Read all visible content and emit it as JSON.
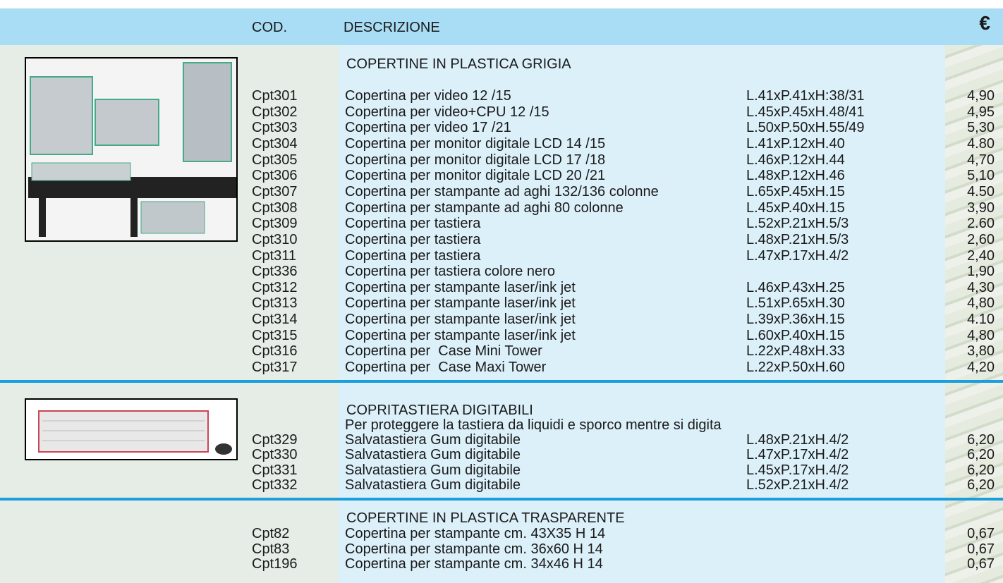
{
  "header": {
    "cod": "COD.",
    "descrizione": "DESCRIZIONE",
    "currency": "€"
  },
  "sections": [
    {
      "title": "COPERTINE IN PLASTICA GRIGIA",
      "rows": [
        {
          "code": "Cpt301",
          "description": "Copertina per video 12 /15",
          "size": "L.41xP.41xH:38/31",
          "price": "4,90"
        },
        {
          "code": "Cpt302",
          "description": "Copertina per video+CPU 12 /15",
          "size": "L.45xP.45xH.48/41",
          "price": "4,95"
        },
        {
          "code": "Cpt303",
          "description": "Copertina per video 17 /21",
          "size": "L.50xP.50xH.55/49",
          "price": "5,30"
        },
        {
          "code": "Cpt304",
          "description": "Copertina per monitor digitale LCD 14 /15",
          "size": "L.41xP.12xH.40",
          "price": "4.80"
        },
        {
          "code": "Cpt305",
          "description": "Copertina per monitor digitale LCD 17 /18",
          "size": "L.46xP.12xH.44",
          "price": "4,70"
        },
        {
          "code": "Cpt306",
          "description": "Copertina per monitor digitale LCD 20 /21",
          "size": "L.48xP.12xH.46",
          "price": "5,10"
        },
        {
          "code": "Cpt307",
          "description": "Copertina per stampante ad aghi 132/136 colonne",
          "size": "L.65xP.45xH.15",
          "price": "4.50"
        },
        {
          "code": "Cpt308",
          "description": "Copertina per stampante ad aghi 80 colonne",
          "size": "L.45xP.40xH.15",
          "price": "3,90"
        },
        {
          "code": "Cpt309",
          "description": "Copertina per tastiera",
          "size": "L.52xP.21xH.5/3",
          "price": "2.60"
        },
        {
          "code": "Cpt310",
          "description": "Copertina per tastiera",
          "size": "L.48xP.21xH.5/3",
          "price": "2,60"
        },
        {
          "code": "Cpt311",
          "description": "Copertina per tastiera",
          "size": "L.47xP.17xH.4/2",
          "price": "2,40"
        },
        {
          "code": "Cpt336",
          "description": "Copertina per tastiera colore nero",
          "price": "1,90"
        },
        {
          "code": "Cpt312",
          "description": "Copertina per stampante laser/ink jet",
          "size": "L.46xP.43xH.25",
          "price": "4,30"
        },
        {
          "code": "Cpt313",
          "description": "Copertina per stampante laser/ink jet",
          "size": "L.51xP.65xH.30",
          "price": "4,80"
        },
        {
          "code": "Cpt314",
          "description": "Copertina per stampante laser/ink jet",
          "size": "L.39xP.36xH.15",
          "price": "4.10"
        },
        {
          "code": "Cpt315",
          "description": "Copertina per stampante laser/ink jet",
          "size": "L.60xP.40xH.15",
          "price": "4,80"
        },
        {
          "code": "Cpt316",
          "description": "Copertina per  Case Mini Tower",
          "size": "L.22xP.48xH.33",
          "price": "3,80"
        },
        {
          "code": "Cpt317",
          "description": "Copertina per  Case Maxi Tower",
          "size": "L.22xP.50xH.60",
          "price": "4,20"
        }
      ]
    },
    {
      "title": "COPRITASTIERA DIGITABILI",
      "subtitle": "Per proteggere la tastiera da liquidi e sporco mentre si digita",
      "rows": [
        {
          "code": "Cpt329",
          "description": "Salvatastiera Gum digitabile",
          "size": "L.48xP.21xH.4/2",
          "price": "6,20"
        },
        {
          "code": "Cpt330",
          "description": "Salvatastiera Gum digitabile",
          "size": "L.47xP.17xH.4/2",
          "price": "6,20"
        },
        {
          "code": "Cpt331",
          "description": "Salvatastiera Gum digitabile",
          "size": "L.45xP.17xH.4/2",
          "price": "6,20"
        },
        {
          "code": "Cpt332",
          "description": "Salvatastiera Gum digitabile",
          "size": "L.52xP.21xH.4/2",
          "price": "6,20"
        }
      ]
    },
    {
      "title": "COPERTINE IN PLASTICA TRASPARENTE",
      "rows": [
        {
          "code": "Cpt82",
          "description": "Copertina per stampante cm. 43X35 H 14",
          "price": "0,67"
        },
        {
          "code": "Cpt83",
          "description": "Copertina per stampante cm. 36x60 H 14",
          "price": "0,67"
        },
        {
          "code": "Cpt196",
          "description": "Copertina per stampante cm. 34x46 H 14",
          "price": "0,67"
        }
      ]
    }
  ]
}
